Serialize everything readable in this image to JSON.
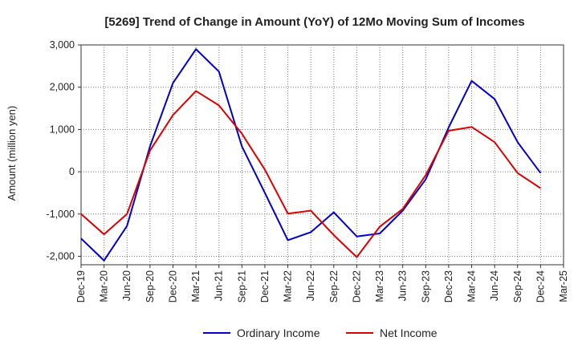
{
  "chart_data": {
    "type": "line",
    "title": "[5269]  Trend of Change in Amount (YoY) of 12Mo Moving Sum of Incomes",
    "xlabel": "",
    "ylabel": "Amount (million yen)",
    "categories": [
      "Dec-19",
      "Mar-20",
      "Jun-20",
      "Sep-20",
      "Dec-20",
      "Mar-21",
      "Jun-21",
      "Sep-21",
      "Dec-21",
      "Mar-22",
      "Jun-22",
      "Sep-22",
      "Dec-22",
      "Mar-23",
      "Jun-23",
      "Sep-23",
      "Dec-23",
      "Mar-24",
      "Jun-24",
      "Sep-24",
      "Dec-24",
      "Mar-25"
    ],
    "ylim": [
      -2200,
      3000
    ],
    "yticks": [
      3000,
      2000,
      1000,
      0,
      -1000,
      -2000
    ],
    "ytick_labels": [
      "3,000",
      "2,000",
      "1,000",
      "0",
      "-1,000",
      "-2,000"
    ],
    "grid": true,
    "legend_position": "bottom",
    "series": [
      {
        "name": "Ordinary Income",
        "color": "#0000cc",
        "values": [
          -1580,
          -2100,
          -1280,
          600,
          2100,
          2900,
          2370,
          600,
          -500,
          -1620,
          -1430,
          -960,
          -1530,
          -1460,
          -920,
          -180,
          1050,
          2150,
          1720,
          700,
          -30,
          null
        ]
      },
      {
        "name": "Net Income",
        "color": "#dd0000",
        "values": [
          -1000,
          -1480,
          -1000,
          500,
          1340,
          1910,
          1570,
          900,
          50,
          -990,
          -920,
          -1500,
          -2020,
          -1300,
          -880,
          -80,
          970,
          1060,
          700,
          -30,
          -390,
          null
        ]
      }
    ]
  }
}
